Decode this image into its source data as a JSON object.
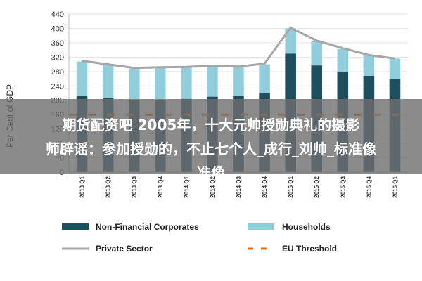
{
  "chart_data": {
    "type": "bar",
    "stacked": true,
    "categories": [
      "2013 Q1",
      "2013 Q2",
      "2013 Q3",
      "2013 Q4",
      "2014 Q1",
      "2014 Q2",
      "2014 Q3",
      "2014 Q4",
      "2015 Q1",
      "2015 Q2",
      "2015 Q3",
      "2015 Q4",
      "2016 Q1"
    ],
    "series": [
      {
        "name": "Non-Financial Corporates",
        "kind": "bar",
        "color": "#1f4e5f",
        "values": [
          213,
          207,
          200,
          202,
          204,
          210,
          212,
          220,
          330,
          297,
          280,
          268,
          260
        ]
      },
      {
        "name": "Households",
        "kind": "bar",
        "color": "#92cddc",
        "values": [
          95,
          91,
          88,
          88,
          89,
          85,
          82,
          80,
          70,
          67,
          63,
          57,
          56
        ]
      },
      {
        "name": "Private Sector",
        "kind": "line",
        "color": "#a6a6a6",
        "values": [
          310,
          300,
          290,
          292,
          293,
          296,
          294,
          302,
          402,
          366,
          345,
          326,
          316
        ]
      },
      {
        "name": "EU Threshold",
        "kind": "dashed-line",
        "color": "#e46c0a",
        "values": [
          160,
          160,
          160,
          160,
          160,
          160,
          160,
          160,
          160,
          160,
          160,
          160,
          160
        ]
      }
    ],
    "ylabel": "Per Cent of GDP",
    "ylim": [
      0,
      440
    ],
    "yticks": [
      "0",
      "40",
      "80",
      "120",
      "160",
      "200",
      "240",
      "280",
      "320",
      "360",
      "400",
      "440"
    ],
    "legend_position": "bottom"
  },
  "overlay": {
    "line1": "期货配资吧 2005年，十大元帅授勋典礼的摄影",
    "line2": "师辟谣：参加授勋的，不止七个人_成行_刘帅_标准像",
    "line3": "准像"
  }
}
